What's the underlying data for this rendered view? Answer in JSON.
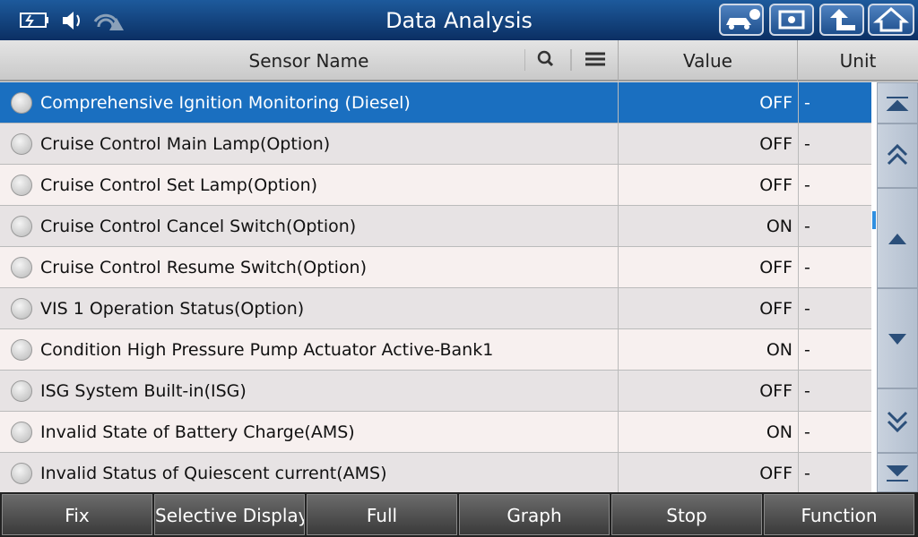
{
  "header": {
    "title": "Data Analysis"
  },
  "table": {
    "columns": [
      "Sensor Name",
      "Value",
      "Unit"
    ],
    "rows": [
      [
        "Comprehensive Ignition Monitoring (Diesel)",
        "OFF",
        "-"
      ],
      [
        "Cruise Control Main Lamp(Option)",
        "OFF",
        "-"
      ],
      [
        "Cruise Control Set Lamp(Option)",
        "OFF",
        "-"
      ],
      [
        "Cruise Control Cancel Switch(Option)",
        "ON",
        "-"
      ],
      [
        "Cruise Control Resume Switch(Option)",
        "OFF",
        "-"
      ],
      [
        "VIS 1 Operation Status(Option)",
        "OFF",
        "-"
      ],
      [
        "Condition High Pressure Pump Actuator Active-Bank1",
        "ON",
        "-"
      ],
      [
        "ISG System Built-in(ISG)",
        "OFF",
        "-"
      ],
      [
        "Invalid State of Battery Charge(AMS)",
        "ON",
        "-"
      ],
      [
        "Invalid Status of Quiescent current(AMS)",
        "OFF",
        "-"
      ]
    ]
  },
  "buttons": [
    "Fix",
    "Selective Display",
    "Full",
    "Graph",
    "Stop",
    "Function"
  ]
}
